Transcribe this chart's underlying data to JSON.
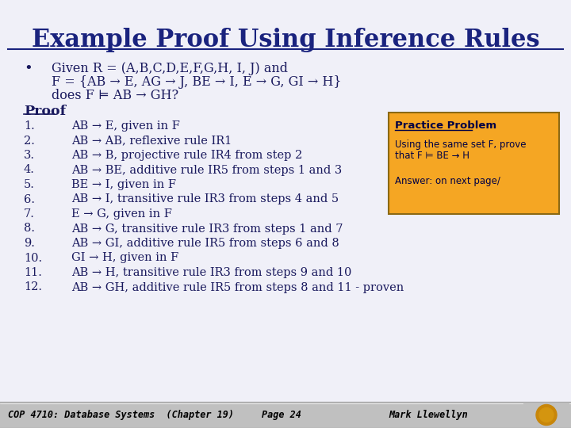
{
  "title": "Example Proof Using Inference Rules",
  "title_color": "#1a237e",
  "title_fontsize": 22,
  "bg_color": "#f0f0f8",
  "bullet_text_line1": "Given R = (A,B,C,D,E,F,G,H, I, J) and",
  "bullet_text_line2": "F = {AB → E, AG → J, BE → I, E → G, GI → H}",
  "bullet_text_line3": "does F ⊨ AB → GH?",
  "proof_steps": [
    "AB → E, given in F",
    "AB → AB, reflexive rule IR1",
    "AB → B, projective rule IR4 from step 2",
    "AB → BE, additive rule IR5 from steps 1 and 3",
    "BE → I, given in F",
    "AB → I, transitive rule IR3 from steps 4 and 5",
    "E → G, given in F",
    "AB → G, transitive rule IR3 from steps 1 and 7",
    "AB → GI, additive rule IR5 from steps 6 and 8",
    "GI → H, given in F",
    "AB → H, transitive rule IR3 from steps 9 and 10",
    "AB → GH, additive rule IR5 from steps 8 and 11 - proven"
  ],
  "practice_box_color": "#f5a623",
  "practice_box_border": "#8b6914",
  "practice_title": "Practice Problem",
  "practice_line1": "Using the same set F, prove",
  "practice_line2": "that F ⊨ BE → H",
  "practice_line3": "Answer: on next page/",
  "footer_bg": "#c0c0c0",
  "footer_text1": "COP 4710: Database Systems  (Chapter 19)",
  "footer_text2": "Page 24",
  "footer_text3": "Mark Llewellyn",
  "text_color": "#1a1a5e",
  "underline_color": "#1a1a5e"
}
